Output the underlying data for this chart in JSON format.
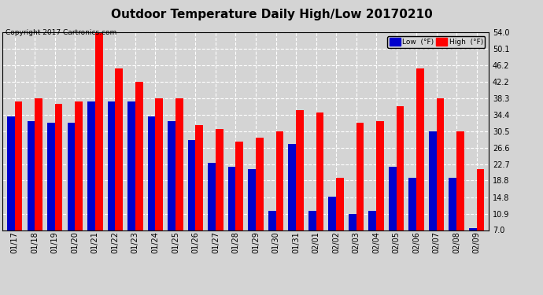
{
  "title": "Outdoor Temperature Daily High/Low 20170210",
  "copyright": "Copyright 2017 Cartronics.com",
  "legend_low": "Low  (°F)",
  "legend_high": "High  (°F)",
  "dates": [
    "01/17",
    "01/18",
    "01/19",
    "01/20",
    "01/21",
    "01/22",
    "01/23",
    "01/24",
    "01/25",
    "01/26",
    "01/27",
    "01/28",
    "01/29",
    "01/30",
    "01/31",
    "02/01",
    "02/02",
    "02/03",
    "02/04",
    "02/05",
    "02/06",
    "02/07",
    "02/08",
    "02/09"
  ],
  "highs": [
    37.5,
    38.3,
    37.0,
    37.5,
    54.0,
    45.5,
    42.3,
    38.3,
    38.3,
    32.0,
    31.0,
    28.0,
    29.0,
    30.5,
    35.5,
    35.0,
    19.5,
    32.5,
    33.0,
    36.5,
    45.5,
    38.3,
    30.5,
    21.5
  ],
  "lows": [
    34.0,
    33.0,
    32.5,
    32.5,
    37.5,
    37.5,
    37.5,
    34.0,
    33.0,
    28.5,
    23.0,
    22.0,
    21.5,
    11.5,
    27.5,
    11.5,
    15.0,
    10.9,
    11.5,
    22.0,
    19.5,
    30.5,
    19.5,
    7.5
  ],
  "high_color": "#ff0000",
  "low_color": "#0000cc",
  "bg_color": "#d4d4d4",
  "plot_bg_color": "#d4d4d4",
  "grid_color": "#ffffff",
  "ylim_min": 7.0,
  "ylim_max": 54.0,
  "yticks": [
    7.0,
    10.9,
    14.8,
    18.8,
    22.7,
    26.6,
    30.5,
    34.4,
    38.3,
    42.2,
    46.2,
    50.1,
    54.0
  ],
  "bar_width": 0.38,
  "title_fontsize": 11,
  "tick_fontsize": 7,
  "copyright_fontsize": 6.5
}
